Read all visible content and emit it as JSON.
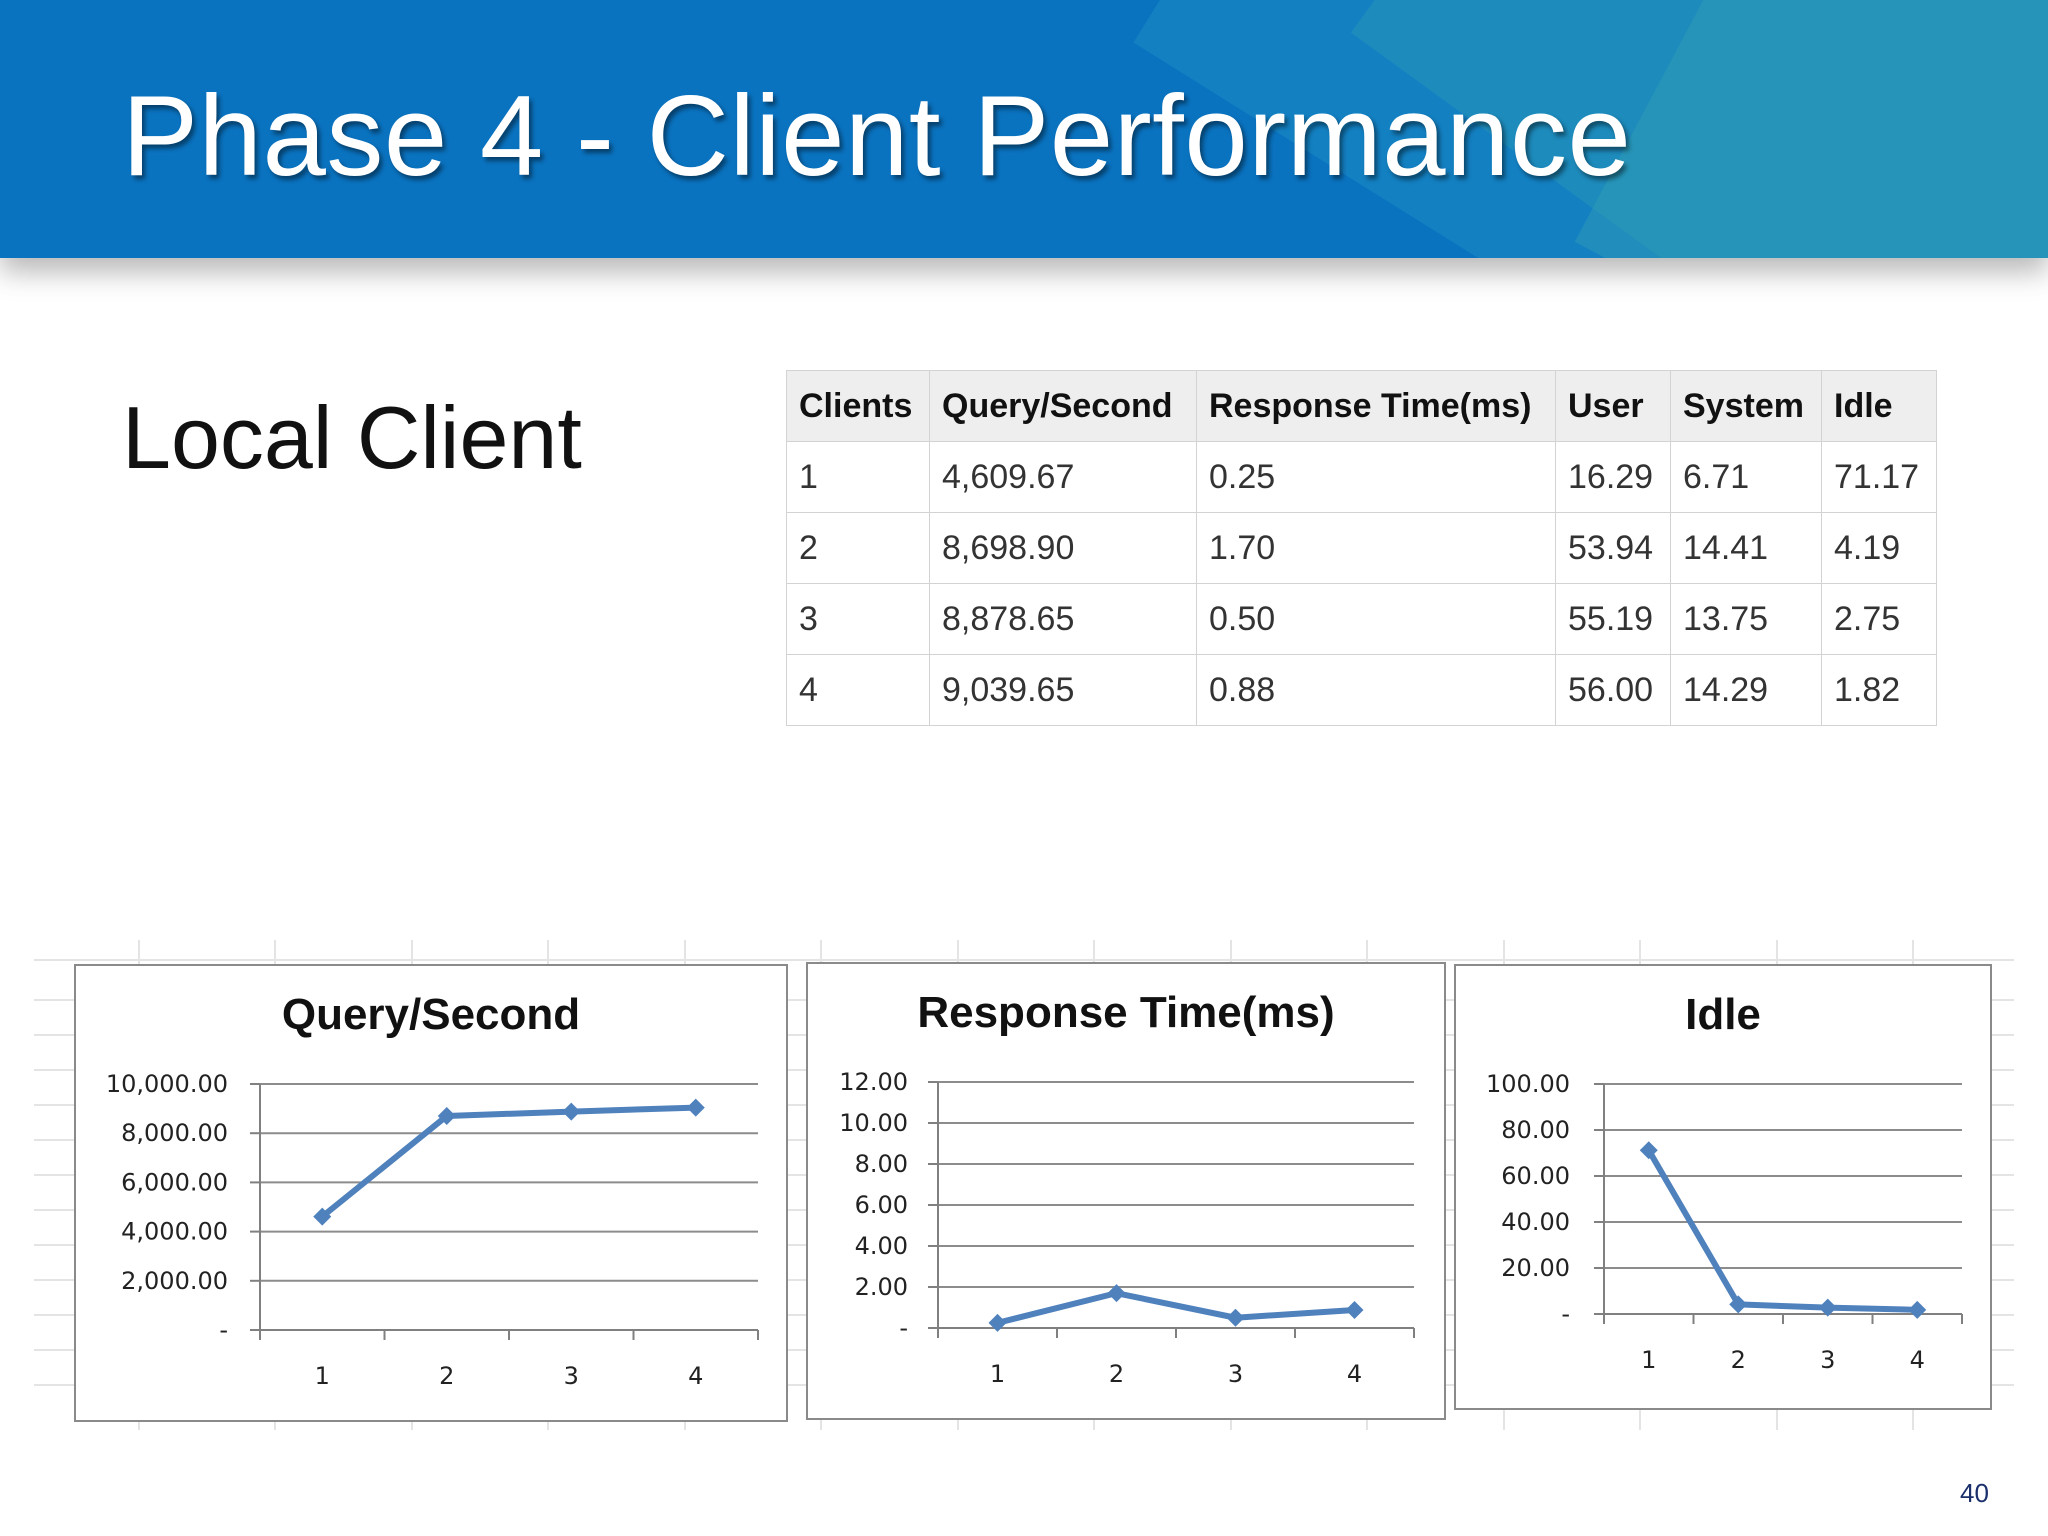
{
  "slide": {
    "title": "Phase 4 - Client Performance",
    "subtitle": "Local Client",
    "page_number": "40"
  },
  "table": {
    "headers": [
      "Clients",
      "Query/Second",
      "Response  Time(ms)",
      "User",
      "System",
      "Idle"
    ],
    "rows": [
      [
        "1",
        "4,609.67",
        "0.25",
        "16.29",
        "6.71",
        "71.17"
      ],
      [
        "2",
        "8,698.90",
        "1.70",
        "53.94",
        "14.41",
        "4.19"
      ],
      [
        "3",
        "8,878.65",
        "0.50",
        "55.19",
        "13.75",
        "2.75"
      ],
      [
        "4",
        "9,039.65",
        "0.88",
        "56.00",
        "14.29",
        "1.82"
      ]
    ]
  },
  "chart_data": [
    {
      "type": "line",
      "title": "Query/Second",
      "categories": [
        "1",
        "2",
        "3",
        "4"
      ],
      "values": [
        4609.67,
        8698.9,
        8878.65,
        9039.65
      ],
      "ylim": [
        0,
        10000
      ],
      "yticks": [
        0,
        2000,
        4000,
        6000,
        8000,
        10000
      ],
      "ytick_labels": [
        "-",
        "2,000.00",
        "4,000.00",
        "6,000.00",
        "8,000.00",
        "10,000.00"
      ],
      "grid": true,
      "line_color": "#4f81bd"
    },
    {
      "type": "line",
      "title": "Response Time(ms)",
      "categories": [
        "1",
        "2",
        "3",
        "4"
      ],
      "values": [
        0.25,
        1.7,
        0.5,
        0.88
      ],
      "ylim": [
        0,
        12
      ],
      "yticks": [
        0,
        2,
        4,
        6,
        8,
        10,
        12
      ],
      "ytick_labels": [
        "-",
        "2.00",
        "4.00",
        "6.00",
        "8.00",
        "10.00",
        "12.00"
      ],
      "grid": true,
      "line_color": "#4f81bd"
    },
    {
      "type": "line",
      "title": "Idle",
      "categories": [
        "1",
        "2",
        "3",
        "4"
      ],
      "values": [
        71.17,
        4.19,
        2.75,
        1.82
      ],
      "ylim": [
        0,
        100
      ],
      "yticks": [
        0,
        20,
        40,
        60,
        80,
        100
      ],
      "ytick_labels": [
        "-",
        "20.00",
        "40.00",
        "60.00",
        "80.00",
        "100.00"
      ],
      "grid": true,
      "line_color": "#4f81bd"
    }
  ]
}
